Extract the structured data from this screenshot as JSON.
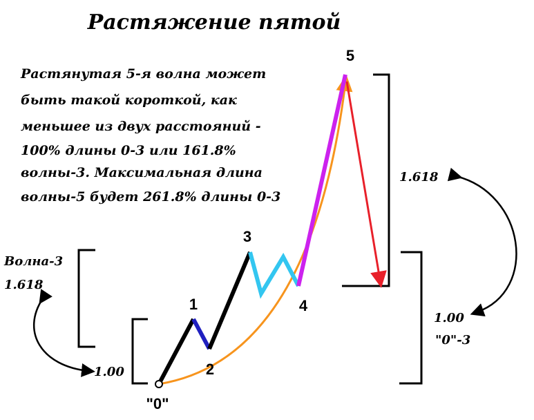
{
  "title": "Растяжение пятой",
  "description": [
    "Растянутая 5-я волна может",
    "быть такой короткой, как",
    "меньшее из двух расстояний -",
    "100% длины 0-3 или 161.8%",
    "волны-3. Максимальная длина",
    "волны-5 будет 261.8% длины 0-3"
  ],
  "points": [
    "\"0\"",
    "1",
    "2",
    "3",
    "4",
    "5"
  ],
  "labels": {
    "wave3": "Волна-3",
    "wave3_ratio": "1.618",
    "base_ratio": "1.00",
    "ext_ratio": "1.618",
    "ref_ratio": "1.00",
    "ref_name": "\"0\"-3"
  }
}
